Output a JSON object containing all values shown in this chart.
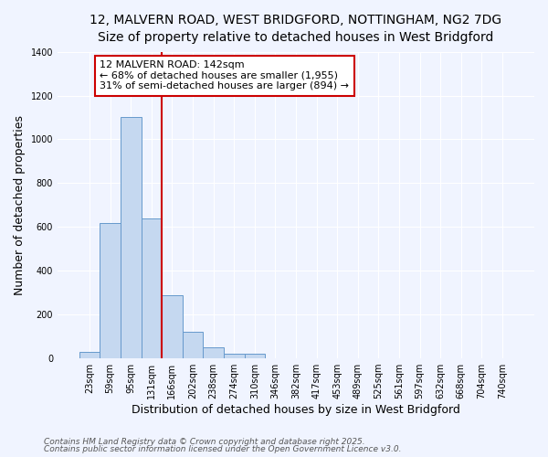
{
  "title_line1": "12, MALVERN ROAD, WEST BRIDGFORD, NOTTINGHAM, NG2 7DG",
  "title_line2": "Size of property relative to detached houses in West Bridgford",
  "xlabel": "Distribution of detached houses by size in West Bridgford",
  "ylabel": "Number of detached properties",
  "categories": [
    "23sqm",
    "59sqm",
    "95sqm",
    "131sqm",
    "166sqm",
    "202sqm",
    "238sqm",
    "274sqm",
    "310sqm",
    "346sqm",
    "382sqm",
    "417sqm",
    "453sqm",
    "489sqm",
    "525sqm",
    "561sqm",
    "597sqm",
    "632sqm",
    "668sqm",
    "704sqm",
    "740sqm"
  ],
  "values": [
    30,
    620,
    1100,
    640,
    290,
    120,
    50,
    20,
    20,
    0,
    0,
    0,
    0,
    0,
    0,
    0,
    0,
    0,
    0,
    0,
    0
  ],
  "bar_color": "#c5d8f0",
  "bar_edge_color": "#6699cc",
  "vline_color": "#cc0000",
  "annotation_text": "12 MALVERN ROAD: 142sqm\n← 68% of detached houses are smaller (1,955)\n31% of semi-detached houses are larger (894) →",
  "ylim": [
    0,
    1400
  ],
  "yticks": [
    0,
    200,
    400,
    600,
    800,
    1000,
    1200,
    1400
  ],
  "bg_color": "#f0f4ff",
  "grid_color": "white",
  "footer_line1": "Contains HM Land Registry data © Crown copyright and database right 2025.",
  "footer_line2": "Contains public sector information licensed under the Open Government Licence v3.0.",
  "title_fontsize": 10,
  "subtitle_fontsize": 9,
  "axis_label_fontsize": 9,
  "tick_fontsize": 7,
  "footer_fontsize": 6.5,
  "annot_fontsize": 8
}
